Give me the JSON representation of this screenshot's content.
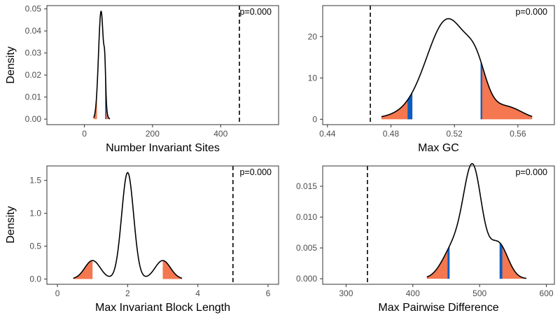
{
  "colors": {
    "tail_fill": "#f4774f",
    "cutoff_band": "#0a5dc2",
    "density_line": "#000000",
    "observed_line": "#000000",
    "panel_border": "#333333"
  },
  "chart_data": [
    {
      "type": "density",
      "panel": "top-left",
      "xlabel": "Number Invariant Sites",
      "ylabel": "Density",
      "xlim": [
        -110,
        570
      ],
      "ylim": [
        -0.0025,
        0.0515
      ],
      "xticks": [
        0,
        200,
        400
      ],
      "xtick_labels": [
        "0",
        "200",
        "400"
      ],
      "yticks": [
        0.0,
        0.01,
        0.02,
        0.03,
        0.04,
        0.05
      ],
      "ytick_labels": [
        "0.00",
        "0.01",
        "0.02",
        "0.03",
        "0.04",
        "0.05"
      ],
      "observed": 455,
      "p_label": "p=0.000",
      "components": [
        {
          "w": 0.92,
          "mu": 49,
          "sd": 7.5
        },
        {
          "w": 0.08,
          "mu": 60,
          "sd": 2.5
        }
      ],
      "range": [
        27,
        75
      ],
      "tails": {
        "lower": [
          27,
          37
        ],
        "upper": [
          62,
          75
        ]
      },
      "bands": [
        [
          61,
          64
        ]
      ]
    },
    {
      "type": "density",
      "panel": "top-right",
      "xlabel": "Max GC",
      "ylabel": "",
      "xlim": [
        0.437,
        0.583
      ],
      "ylim": [
        -1.3,
        27.5
      ],
      "xticks": [
        0.44,
        0.48,
        0.52,
        0.56
      ],
      "xtick_labels": [
        "0.44",
        "0.48",
        "0.52",
        "0.56"
      ],
      "yticks": [
        0,
        10,
        20
      ],
      "ytick_labels": [
        "0",
        "10",
        "20"
      ],
      "observed": 0.467,
      "p_label": "p=0.000",
      "components": [
        {
          "w": 0.02,
          "mu": 0.485,
          "sd": 0.012
        },
        {
          "w": 0.82,
          "mu": 0.516,
          "sd": 0.0135
        },
        {
          "w": 0.1,
          "mu": 0.534,
          "sd": 0.006
        },
        {
          "w": 0.06,
          "mu": 0.554,
          "sd": 0.009
        }
      ],
      "range": [
        0.474,
        0.569
      ],
      "tails": {
        "lower": [
          0.474,
          0.4935
        ],
        "upper": [
          0.5365,
          0.569
        ]
      },
      "bands": [
        [
          0.4905,
          0.4935
        ],
        [
          0.5365,
          0.5375
        ]
      ]
    },
    {
      "type": "density",
      "panel": "bottom-left",
      "xlabel": "Max Invariant Block Length",
      "ylabel": "Density",
      "xlim": [
        -0.3,
        6.3
      ],
      "ylim": [
        -0.08,
        1.72
      ],
      "xticks": [
        0,
        2,
        4,
        6
      ],
      "xtick_labels": [
        "0",
        "2",
        "4",
        "6"
      ],
      "yticks": [
        0.0,
        0.5,
        1.0,
        1.5
      ],
      "ytick_labels": [
        "0.0",
        "0.5",
        "1.0",
        "1.5"
      ],
      "observed": 5,
      "p_label": "p=0.000",
      "components": [
        {
          "w": 0.155,
          "mu": 1,
          "sd": 0.22
        },
        {
          "w": 0.69,
          "mu": 2,
          "sd": 0.17
        },
        {
          "w": 0.155,
          "mu": 3,
          "sd": 0.22
        }
      ],
      "range": [
        0.45,
        3.55
      ],
      "tails": {
        "lower": [
          0.45,
          1.0
        ],
        "upper": [
          3.0,
          3.55
        ]
      },
      "bands": []
    },
    {
      "type": "density",
      "panel": "bottom-right",
      "xlabel": "Max Pairwise Difference",
      "ylabel": "",
      "xlim": [
        265,
        612
      ],
      "ylim": [
        -0.0009,
        0.0183
      ],
      "xticks": [
        300,
        400,
        500,
        600
      ],
      "xtick_labels": [
        "300",
        "400",
        "500",
        "600"
      ],
      "yticks": [
        0.0,
        0.005,
        0.01,
        0.015
      ],
      "ytick_labels": [
        "0.000",
        "0.005",
        "0.010",
        "0.015"
      ],
      "observed": 332,
      "p_label": "p=0.000",
      "components": [
        {
          "w": 0.22,
          "mu": 462,
          "sd": 17
        },
        {
          "w": 0.58,
          "mu": 490,
          "sd": 13.5
        },
        {
          "w": 0.2,
          "mu": 528,
          "sd": 14
        }
      ],
      "range": [
        421,
        570
      ],
      "tails": {
        "lower": [
          421,
          455
        ],
        "upper": [
          530,
          570
        ]
      },
      "bands": [
        [
          452,
          455
        ],
        [
          530,
          534
        ]
      ]
    }
  ]
}
